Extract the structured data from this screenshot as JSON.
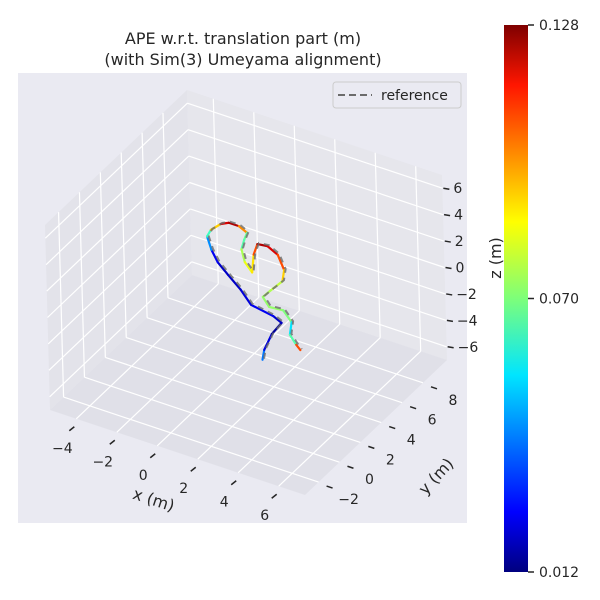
{
  "chart_data": {
    "type": "line3d",
    "title": "APE w.r.t. translation part (m)",
    "subtitle": "(with Sim(3) Umeyama alignment)",
    "xlabel": "x (m)",
    "ylabel": "y (m)",
    "zlabel": "z (m)",
    "xlim": [
      -5.3,
      7.3
    ],
    "ylim": [
      -3.3,
      10.3
    ],
    "zlim": [
      -7,
      7
    ],
    "xticks": [
      "−4",
      "−2",
      "0",
      "2",
      "4",
      "6"
    ],
    "xtick_values": [
      -4,
      -2,
      0,
      2,
      4,
      6
    ],
    "yticks": [
      "−2",
      "0",
      "2",
      "4",
      "6",
      "8"
    ],
    "ytick_values": [
      -2,
      0,
      2,
      4,
      6,
      8
    ],
    "zticks": [
      "6",
      "4",
      "2",
      "0",
      "−2",
      "−4",
      "−6"
    ],
    "ztick_values": [
      6,
      4,
      2,
      0,
      -2,
      -4,
      -6
    ],
    "grid": true,
    "legend": {
      "placement": "top-right",
      "entries": [
        {
          "label": "reference",
          "style": "dashed",
          "color": "#6b6b6b"
        }
      ]
    },
    "colormap": "jet",
    "colorbar": {
      "min": 0.012,
      "max": 0.128,
      "ticks": [
        "0.128",
        "0.070",
        "0.012"
      ],
      "tick_values": [
        0.128,
        0.07,
        0.012
      ]
    },
    "trajectory": [
      [
        2.0,
        3,
        -4.2,
        0.05
      ],
      [
        2.1,
        3,
        -3.4,
        0.03
      ],
      [
        2.5,
        3,
        -2.0,
        0.015
      ],
      [
        3.0,
        3,
        -0.9,
        0.015
      ],
      [
        2.6,
        3,
        -0.6,
        0.025
      ],
      [
        1.5,
        3,
        -0.3,
        0.025
      ],
      [
        1.0,
        3,
        0.6,
        0.02
      ],
      [
        0.4,
        3,
        1.4,
        0.02
      ],
      [
        -0.1,
        3,
        2.1,
        0.02
      ],
      [
        -0.4,
        3,
        2.9,
        0.03
      ],
      [
        -0.6,
        3,
        3.8,
        0.055
      ],
      [
        -0.4,
        3,
        4.4,
        0.07
      ],
      [
        0.1,
        3,
        5.1,
        0.11
      ],
      [
        0.5,
        3,
        5.4,
        0.125
      ],
      [
        1.0,
        3,
        5.4,
        0.12
      ],
      [
        1.4,
        3,
        5.1,
        0.075
      ],
      [
        1.25,
        3,
        4.5,
        0.06
      ],
      [
        1.1,
        3,
        3.7,
        0.07
      ],
      [
        1.25,
        3,
        2.8,
        0.08
      ],
      [
        1.6,
        3,
        2.2,
        0.085
      ],
      [
        1.7,
        3,
        3.6,
        0.09
      ],
      [
        1.9,
        3,
        4.5,
        0.12
      ],
      [
        2.4,
        3,
        4.6,
        0.125
      ],
      [
        2.9,
        3,
        4.2,
        0.11
      ],
      [
        3.2,
        3,
        3.2,
        0.1
      ],
      [
        3.1,
        3,
        2.3,
        0.08
      ],
      [
        2.5,
        3,
        1.3,
        0.075
      ],
      [
        2.1,
        3,
        0.6,
        0.075
      ],
      [
        2.4,
        3,
        0.0,
        0.07
      ],
      [
        3.1,
        3,
        0.1,
        0.075
      ],
      [
        3.5,
        3,
        -0.6,
        0.065
      ],
      [
        3.4,
        3,
        -1.6,
        0.04
      ],
      [
        3.7,
        3,
        -2.2,
        0.09
      ],
      [
        3.9,
        3,
        -2.5,
        0.12
      ]
    ]
  }
}
